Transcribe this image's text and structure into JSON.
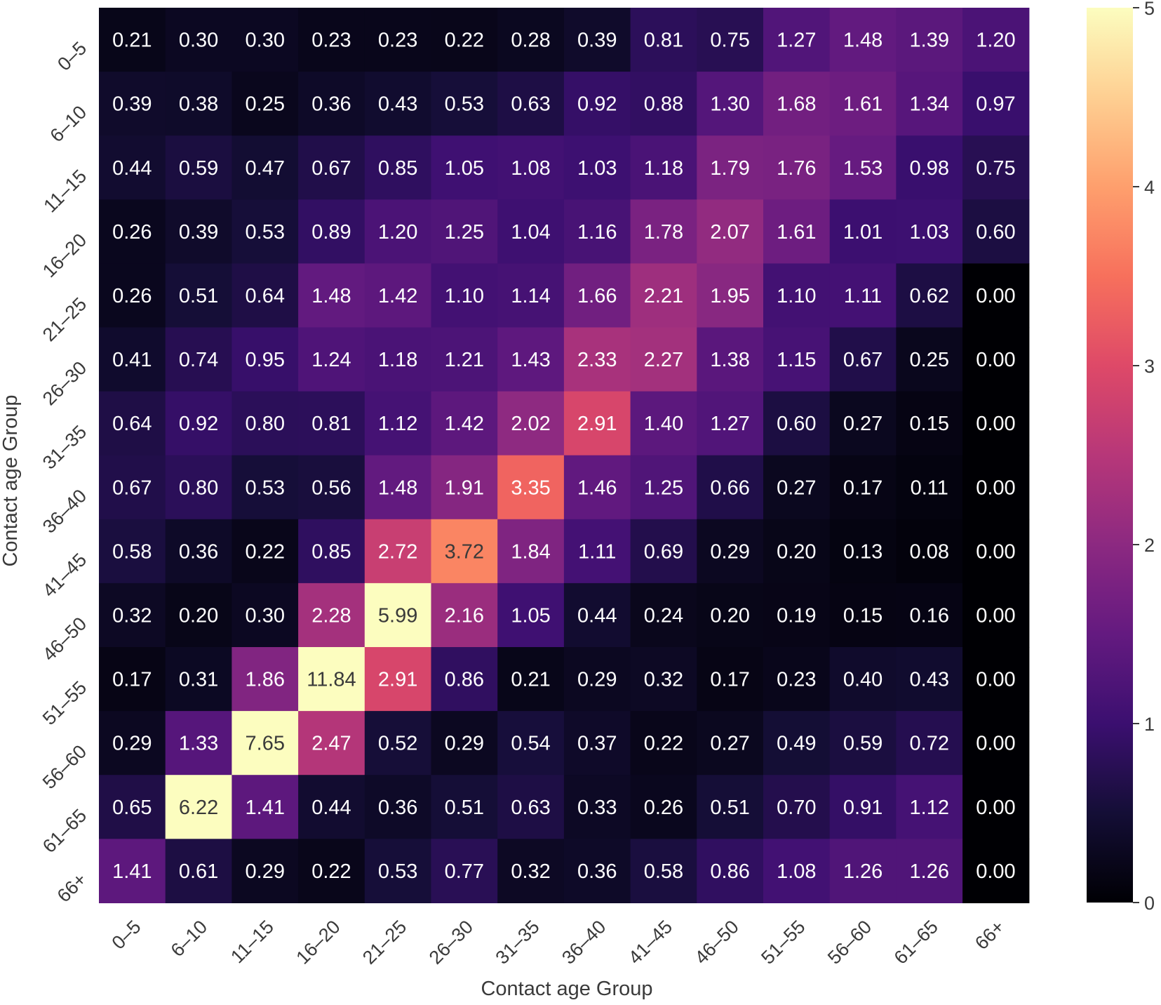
{
  "chart_data": {
    "type": "heatmap",
    "title": "",
    "xlabel": "Contact age Group",
    "ylabel": "Contact age Group",
    "x_categories": [
      "0–5",
      "6–10",
      "11–15",
      "16–20",
      "21–25",
      "26–30",
      "31–35",
      "36–40",
      "41–45",
      "46–50",
      "51–55",
      "56–60",
      "61–65",
      "66+"
    ],
    "y_categories": [
      "0–5",
      "6–10",
      "11–15",
      "16–20",
      "21–25",
      "26–30",
      "31–35",
      "36–40",
      "41–45",
      "46–50",
      "51–55",
      "56–60",
      "61–65",
      "66+"
    ],
    "values": [
      [
        0.21,
        0.3,
        0.3,
        0.23,
        0.23,
        0.22,
        0.28,
        0.39,
        0.81,
        0.75,
        1.27,
        1.48,
        1.39,
        1.2
      ],
      [
        0.39,
        0.38,
        0.25,
        0.36,
        0.43,
        0.53,
        0.63,
        0.92,
        0.88,
        1.3,
        1.68,
        1.61,
        1.34,
        0.97
      ],
      [
        0.44,
        0.59,
        0.47,
        0.67,
        0.85,
        1.05,
        1.08,
        1.03,
        1.18,
        1.79,
        1.76,
        1.53,
        0.98,
        0.75
      ],
      [
        0.26,
        0.39,
        0.53,
        0.89,
        1.2,
        1.25,
        1.04,
        1.16,
        1.78,
        2.07,
        1.61,
        1.01,
        1.03,
        0.6
      ],
      [
        0.26,
        0.51,
        0.64,
        1.48,
        1.42,
        1.1,
        1.14,
        1.66,
        2.21,
        1.95,
        1.1,
        1.11,
        0.62,
        0.0
      ],
      [
        0.41,
        0.74,
        0.95,
        1.24,
        1.18,
        1.21,
        1.43,
        2.33,
        2.27,
        1.38,
        1.15,
        0.67,
        0.25,
        0.0
      ],
      [
        0.64,
        0.92,
        0.8,
        0.81,
        1.12,
        1.42,
        2.02,
        2.91,
        1.4,
        1.27,
        0.6,
        0.27,
        0.15,
        0.0
      ],
      [
        0.67,
        0.8,
        0.53,
        0.56,
        1.48,
        1.91,
        3.35,
        1.46,
        1.25,
        0.66,
        0.27,
        0.17,
        0.11,
        0.0
      ],
      [
        0.58,
        0.36,
        0.22,
        0.85,
        2.72,
        3.72,
        1.84,
        1.11,
        0.69,
        0.29,
        0.2,
        0.13,
        0.08,
        0.0
      ],
      [
        0.32,
        0.2,
        0.3,
        2.28,
        5.99,
        2.16,
        1.05,
        0.44,
        0.24,
        0.2,
        0.19,
        0.15,
        0.16,
        0.0
      ],
      [
        0.17,
        0.31,
        1.86,
        11.84,
        2.91,
        0.86,
        0.21,
        0.29,
        0.32,
        0.17,
        0.23,
        0.4,
        0.43,
        0.0
      ],
      [
        0.29,
        1.33,
        7.65,
        2.47,
        0.52,
        0.29,
        0.54,
        0.37,
        0.22,
        0.27,
        0.49,
        0.59,
        0.72,
        0.0
      ],
      [
        0.65,
        6.22,
        1.41,
        0.44,
        0.36,
        0.51,
        0.63,
        0.33,
        0.26,
        0.51,
        0.7,
        0.91,
        1.12,
        0.0
      ],
      [
        1.41,
        0.61,
        0.29,
        0.22,
        0.53,
        0.77,
        0.32,
        0.36,
        0.58,
        0.86,
        1.08,
        1.26,
        1.26,
        0.0
      ]
    ],
    "value_format": "2 decimals",
    "colormap": "magma",
    "color_range": [
      0,
      5
    ],
    "colorbar_ticks": [
      "0",
      "1",
      "2",
      "3",
      "4",
      "5"
    ],
    "dark_text_color": "#3a3a3a",
    "light_text_color": "#ffffff",
    "grid": false,
    "legend": "colorbar right"
  }
}
